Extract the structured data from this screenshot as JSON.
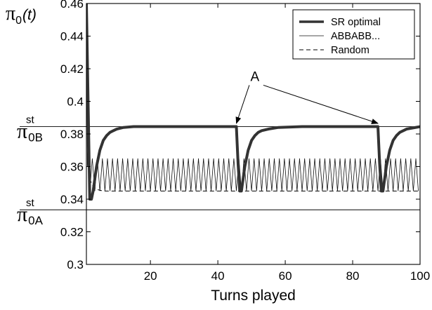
{
  "chart_data": {
    "type": "line",
    "xlabel": "Turns played",
    "ylabel": {
      "symbol": "π",
      "subscript": "0",
      "arg": "(t)"
    },
    "xlim": [
      1,
      100
    ],
    "ylim": [
      0.3,
      0.46
    ],
    "x_ticks": [
      {
        "value": 20,
        "label": "20"
      },
      {
        "value": 40,
        "label": "40"
      },
      {
        "value": 60,
        "label": "60"
      },
      {
        "value": 80,
        "label": "80"
      },
      {
        "value": 100,
        "label": "100"
      }
    ],
    "y_ticks": [
      {
        "value": 0.3,
        "label": "0.3"
      },
      {
        "value": 0.32,
        "label": "0.32"
      },
      {
        "value": 0.34,
        "label": "0.34"
      },
      {
        "value": 0.36,
        "label": "0.36"
      },
      {
        "value": 0.38,
        "label": "0.38"
      },
      {
        "value": 0.4,
        "label": "0.4"
      },
      {
        "value": 0.42,
        "label": "0.42"
      },
      {
        "value": 0.44,
        "label": "0.44"
      },
      {
        "value": 0.46,
        "label": "0.46"
      }
    ],
    "grid": false,
    "legend_position": "top-right",
    "reference_lines": [
      {
        "name": "pi0B_st",
        "value": 0.3845,
        "symbol": "π",
        "subscript": "0B",
        "superscript": "st"
      },
      {
        "name": "pi0A_st",
        "value": 0.3335,
        "symbol": "π",
        "subscript": "0A",
        "superscript": "st"
      }
    ],
    "series": [
      {
        "name": "SR optimal",
        "style": "thick",
        "x": [
          1,
          1.5,
          2,
          2.5,
          3,
          4,
          5,
          6,
          7,
          8,
          9,
          10,
          12,
          15,
          20,
          30,
          40,
          45.5,
          46,
          46.5,
          47,
          48,
          49,
          50,
          51,
          52,
          53,
          55,
          58,
          65,
          75,
          85,
          87.5,
          88,
          88.5,
          89,
          90,
          91,
          92,
          93,
          94,
          96,
          100
        ],
        "y": [
          0.46,
          0.4,
          0.34,
          0.34,
          0.345,
          0.36,
          0.37,
          0.376,
          0.379,
          0.381,
          0.382,
          0.383,
          0.384,
          0.3845,
          0.3845,
          0.3845,
          0.3845,
          0.3845,
          0.362,
          0.345,
          0.345,
          0.36,
          0.37,
          0.376,
          0.379,
          0.381,
          0.382,
          0.383,
          0.384,
          0.3845,
          0.3845,
          0.3845,
          0.3845,
          0.362,
          0.345,
          0.345,
          0.36,
          0.37,
          0.376,
          0.379,
          0.381,
          0.383,
          0.3845
        ]
      },
      {
        "name": "ABBABB...",
        "style": "thin",
        "pattern": "sawtooth",
        "x_start": 2,
        "x_end": 100,
        "period": 1.5,
        "y_low": 0.345,
        "y_high": 0.365,
        "initial": [
          [
            1,
            0.46
          ],
          [
            1.3,
            0.36
          ],
          [
            1.6,
            0.376
          ],
          [
            2,
            0.345
          ]
        ]
      },
      {
        "name": "Random",
        "style": "dashed",
        "x": [
          1,
          1.2,
          1.5,
          2,
          2.5,
          3,
          3.5,
          4,
          5,
          6,
          8,
          10,
          20,
          40,
          60,
          80,
          100
        ],
        "y": [
          0.46,
          0.42,
          0.38,
          0.352,
          0.35,
          0.348,
          0.347,
          0.346,
          0.3455,
          0.345,
          0.345,
          0.345,
          0.345,
          0.345,
          0.345,
          0.345,
          0.345
        ]
      }
    ],
    "annotations": [
      {
        "text": "A",
        "x": 51,
        "y": 0.4125,
        "arrows_to": [
          [
            45.5,
            0.3865
          ],
          [
            87.5,
            0.3865
          ]
        ]
      }
    ]
  }
}
